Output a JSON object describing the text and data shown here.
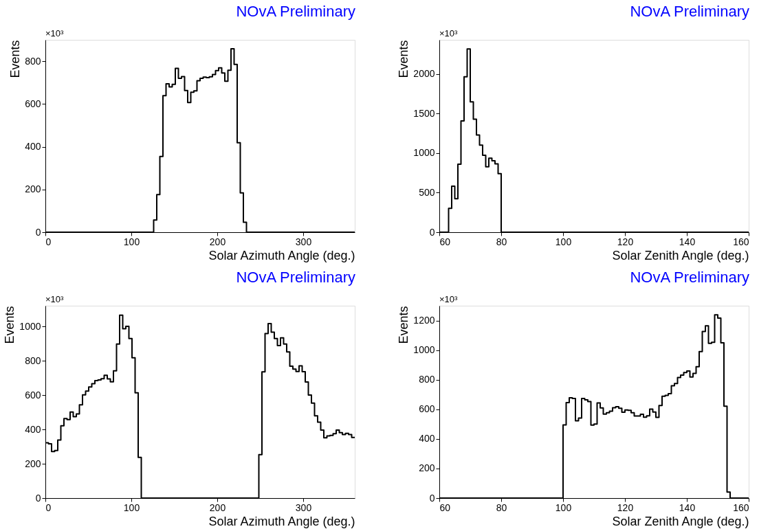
{
  "chart_data": [
    {
      "type": "histogram",
      "title": "NOvA Preliminary",
      "xlabel": "Solar Azimuth Angle (deg.)",
      "ylabel": "Events",
      "annotations": [
        "×10³"
      ],
      "color": "#000000",
      "xlim": [
        0,
        360
      ],
      "xticks": [
        0,
        100,
        200,
        300
      ],
      "ylim": [
        0,
        900
      ],
      "yticks": [
        0,
        200,
        400,
        600,
        800
      ],
      "bins": [
        0,
        126,
        129.6,
        133.2,
        136.8,
        140.4,
        144,
        147.6,
        151.2,
        154.8,
        158.4,
        162,
        165.6,
        169.2,
        172.8,
        176.4,
        180,
        183.6,
        187.2,
        190.8,
        194.4,
        198,
        201.6,
        205.2,
        208.8,
        212.4,
        216,
        219.6,
        223.2,
        226.8,
        230.4,
        234,
        360
      ],
      "values": [
        0,
        57,
        176,
        354,
        639,
        694,
        680,
        692,
        767,
        720,
        728,
        663,
        607,
        655,
        661,
        709,
        720,
        726,
        723,
        727,
        738,
        756,
        769,
        745,
        706,
        758,
        858,
        785,
        419,
        184,
        47,
        0
      ]
    },
    {
      "type": "histogram",
      "title": "NOvA Preliminary",
      "xlabel": "Solar Zenith Angle (deg.)",
      "ylabel": "Events",
      "annotations": [
        "×10³"
      ],
      "color": "#000000",
      "xlim": [
        60,
        160
      ],
      "xticks": [
        60,
        80,
        100,
        120,
        140,
        160
      ],
      "ylim": [
        0,
        2430
      ],
      "yticks": [
        0,
        500,
        1000,
        1500,
        2000
      ],
      "bins": [
        60,
        63,
        64,
        65,
        66,
        67,
        68,
        69,
        70,
        71,
        72,
        73,
        74,
        75,
        76,
        77,
        78,
        79,
        80,
        160
      ],
      "values": [
        0,
        301,
        581,
        423,
        860,
        1405,
        1964,
        2315,
        1646,
        1427,
        1228,
        1101,
        971,
        827,
        935,
        902,
        863,
        739,
        0
      ]
    },
    {
      "type": "histogram",
      "title": "NOvA Preliminary",
      "xlabel": "Solar Azimuth Angle (deg.)",
      "ylabel": "Events",
      "annotations": [
        "×10³"
      ],
      "color": "#000000",
      "xlim": [
        0,
        360
      ],
      "xticks": [
        0,
        100,
        200,
        300
      ],
      "ylim": [
        0,
        1120
      ],
      "yticks": [
        0,
        200,
        400,
        600,
        800,
        1000
      ],
      "bins": [
        0,
        3.6,
        7.2,
        10.8,
        14.4,
        18,
        21.6,
        25.2,
        28.8,
        32.4,
        36,
        39.6,
        43.2,
        46.8,
        50.4,
        54,
        57.6,
        61.2,
        64.8,
        68.4,
        72,
        75.6,
        79.2,
        82.8,
        86.4,
        90,
        93.6,
        97.2,
        100.8,
        104.4,
        108,
        111.6,
        248.4,
        252,
        255.6,
        259.2,
        262.8,
        266.4,
        270,
        273.6,
        277.2,
        280.8,
        284.4,
        288,
        291.6,
        295.2,
        298.8,
        302.4,
        306,
        309.6,
        313.2,
        316.8,
        320.4,
        324,
        327.6,
        331.2,
        334.8,
        338.4,
        342,
        345.6,
        349.2,
        352.8,
        356.4,
        360
      ],
      "values": [
        322,
        316,
        271,
        277,
        338,
        421,
        463,
        457,
        501,
        474,
        490,
        543,
        601,
        623,
        647,
        666,
        684,
        688,
        695,
        715,
        694,
        677,
        741,
        897,
        1065,
        986,
        1000,
        929,
        817,
        613,
        237,
        0,
        253,
        735,
        958,
        1016,
        966,
        929,
        888,
        933,
        897,
        851,
        768,
        751,
        737,
        770,
        736,
        676,
        600,
        553,
        479,
        442,
        396,
        351,
        362,
        365,
        375,
        396,
        381,
        370,
        377,
        370,
        353
      ]
    },
    {
      "type": "histogram",
      "title": "NOvA Preliminary",
      "xlabel": "Solar Zenith Angle (deg.)",
      "ylabel": "Events",
      "annotations": [
        "×10³"
      ],
      "color": "#000000",
      "xlim": [
        60,
        160
      ],
      "xticks": [
        60,
        80,
        100,
        120,
        140,
        160
      ],
      "ylim": [
        0,
        1300
      ],
      "yticks": [
        0,
        200,
        400,
        600,
        800,
        1000,
        1200
      ],
      "bins": [
        60,
        100,
        101,
        102,
        103,
        104,
        105,
        106,
        107,
        108,
        109,
        110,
        111,
        112,
        113,
        114,
        115,
        116,
        117,
        118,
        119,
        120,
        121,
        122,
        123,
        124,
        125,
        126,
        127,
        128,
        129,
        130,
        131,
        132,
        133,
        134,
        135,
        136,
        137,
        138,
        139,
        140,
        141,
        142,
        143,
        144,
        145,
        146,
        147,
        148,
        149,
        150,
        151,
        152,
        153,
        154,
        160
      ],
      "values": [
        0,
        494,
        645,
        678,
        673,
        522,
        541,
        673,
        664,
        652,
        493,
        500,
        643,
        609,
        568,
        577,
        587,
        611,
        617,
        607,
        580,
        595,
        593,
        577,
        555,
        555,
        567,
        547,
        556,
        601,
        581,
        546,
        626,
        688,
        694,
        706,
        759,
        774,
        815,
        831,
        849,
        859,
        818,
        843,
        888,
        990,
        1126,
        1164,
        1046,
        1053,
        1238,
        1216,
        1049,
        621,
        41,
        0
      ]
    }
  ]
}
